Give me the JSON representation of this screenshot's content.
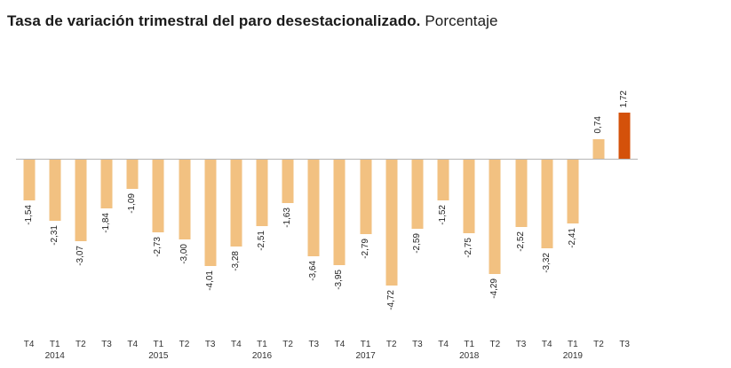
{
  "title": {
    "bold": "Tasa de variación trimestral del paro desestacionalizado.",
    "regular": "Porcentaje"
  },
  "chart_data": {
    "type": "bar",
    "title": "Tasa de variación trimestral del paro desestacionalizado. Porcentaje",
    "xlabel": "",
    "ylabel": "",
    "ylim": [
      -5.2,
      2.2
    ],
    "grid": false,
    "legend": "none",
    "categories": [
      "T4",
      "T1",
      "T2",
      "T3",
      "T4",
      "T1",
      "T2",
      "T3",
      "T4",
      "T1",
      "T2",
      "T3",
      "T4",
      "T1",
      "T2",
      "T3",
      "T4",
      "T1",
      "T2",
      "T3",
      "T4",
      "T1",
      "T2",
      "T3"
    ],
    "year_labels": [
      {
        "index": 1,
        "year": "2014"
      },
      {
        "index": 5,
        "year": "2015"
      },
      {
        "index": 9,
        "year": "2016"
      },
      {
        "index": 13,
        "year": "2017"
      },
      {
        "index": 17,
        "year": "2018"
      },
      {
        "index": 21,
        "year": "2019"
      }
    ],
    "values": [
      -1.54,
      -2.31,
      -3.07,
      -1.84,
      -1.09,
      -2.73,
      -3.0,
      -4.01,
      -3.28,
      -2.51,
      -1.63,
      -3.64,
      -3.95,
      -2.79,
      -4.72,
      -2.59,
      -1.52,
      -2.75,
      -4.29,
      -2.52,
      -3.32,
      -2.41,
      0.74,
      1.72
    ],
    "value_labels": [
      "-1,54",
      "-2,31",
      "-3,07",
      "-1,84",
      "-1,09",
      "-2,73",
      "-3,00",
      "-4,01",
      "-3,28",
      "-2,51",
      "-1,63",
      "-3,64",
      "-3,95",
      "-2,79",
      "-4,72",
      "-2,59",
      "-1,52",
      "-2,75",
      "-4,29",
      "-2,52",
      "-3,32",
      "-2,41",
      "0,74",
      "1,72"
    ],
    "bar_color": "#f2c181",
    "highlight_color": "#d4510a",
    "highlight_index": 23
  }
}
